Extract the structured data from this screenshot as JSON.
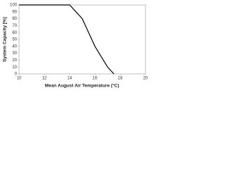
{
  "chart_data": {
    "type": "line",
    "x_label": "Mean August Air Temperature (°C)",
    "y_label": "System Capacity [%]",
    "x": [
      10,
      14,
      15,
      16,
      17,
      17.5
    ],
    "series": [
      {
        "name": "System Capacity",
        "color": "#000000",
        "values": [
          100,
          100,
          80,
          40,
          10,
          0
        ]
      }
    ],
    "xlim": [
      10,
      20
    ],
    "xticks": [
      10,
      12,
      14,
      16,
      18,
      20
    ],
    "ylim": [
      0,
      100
    ],
    "yticks": [
      0,
      10,
      20,
      30,
      40,
      50,
      60,
      70,
      80,
      90,
      100
    ],
    "grid": false
  }
}
